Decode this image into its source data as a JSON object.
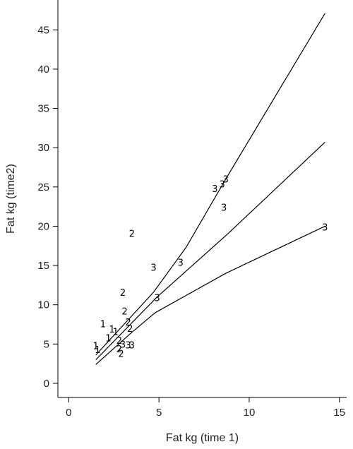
{
  "chart_data": {
    "type": "scatter",
    "title": "",
    "xlabel": "Fat kg (time 1)",
    "ylabel": "Fat kg (time2)",
    "xlim": [
      -0.6,
      15.4
    ],
    "ylim": [
      -1.8,
      48.8
    ],
    "xticks": [
      0,
      5,
      10,
      15
    ],
    "yticks": [
      0,
      5,
      10,
      15,
      20,
      25,
      30,
      35,
      40,
      45
    ],
    "grid": false,
    "series": [
      {
        "marker": "1",
        "points": [
          [
            1.5,
            4.8
          ],
          [
            1.6,
            4.3
          ],
          [
            1.9,
            7.6
          ],
          [
            2.2,
            5.8
          ],
          [
            2.4,
            6.9
          ],
          [
            2.6,
            6.6
          ]
        ]
      },
      {
        "marker": "2",
        "points": [
          [
            2.8,
            5.5
          ],
          [
            2.8,
            4.4
          ],
          [
            2.9,
            3.8
          ],
          [
            3.0,
            11.6
          ],
          [
            3.1,
            9.2
          ],
          [
            3.3,
            7.8
          ],
          [
            3.4,
            7.0
          ],
          [
            3.5,
            19.1
          ]
        ]
      },
      {
        "marker": "3",
        "points": [
          [
            3.0,
            5.0
          ],
          [
            3.3,
            4.9
          ],
          [
            3.5,
            4.9
          ],
          [
            4.7,
            14.8
          ],
          [
            4.9,
            10.9
          ],
          [
            6.2,
            15.4
          ],
          [
            8.1,
            24.8
          ],
          [
            8.5,
            25.4
          ],
          [
            8.7,
            26.0
          ],
          [
            8.6,
            22.4
          ],
          [
            14.2,
            19.9
          ]
        ]
      }
    ],
    "lines": [
      {
        "points": [
          [
            1.5,
            3.6
          ],
          [
            4.7,
            11.6
          ],
          [
            6.5,
            17.3
          ],
          [
            8.7,
            26.0
          ],
          [
            14.2,
            47.1
          ]
        ]
      },
      {
        "points": [
          [
            1.5,
            3.0
          ],
          [
            4.9,
            11.0
          ],
          [
            8.8,
            19.0
          ],
          [
            14.2,
            30.7
          ]
        ]
      },
      {
        "points": [
          [
            1.5,
            2.4
          ],
          [
            3.5,
            6.5
          ],
          [
            4.8,
            9.0
          ],
          [
            8.7,
            14.0
          ],
          [
            14.2,
            20.0
          ]
        ]
      }
    ]
  }
}
